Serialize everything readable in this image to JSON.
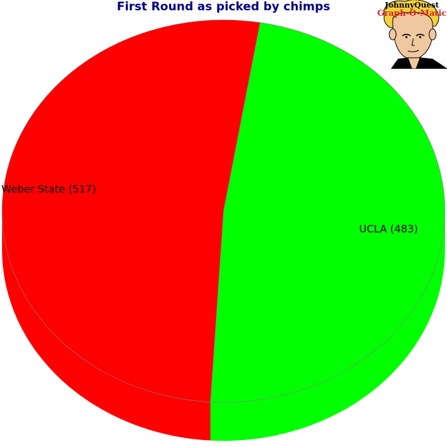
{
  "chart_data": {
    "type": "pie",
    "title": "First Round as picked by chimps",
    "slices": [
      {
        "label": "UCLA",
        "value": 483,
        "color": "#00ff00",
        "display": "UCLA (483)"
      },
      {
        "label": "Weber State",
        "value": 517,
        "color": "#ff0000",
        "display": "Weber State (517)"
      }
    ],
    "style": "3d-tilted"
  },
  "logo": {
    "line1": "JohnnyQuest",
    "line2": "Graph-O-Matic"
  }
}
